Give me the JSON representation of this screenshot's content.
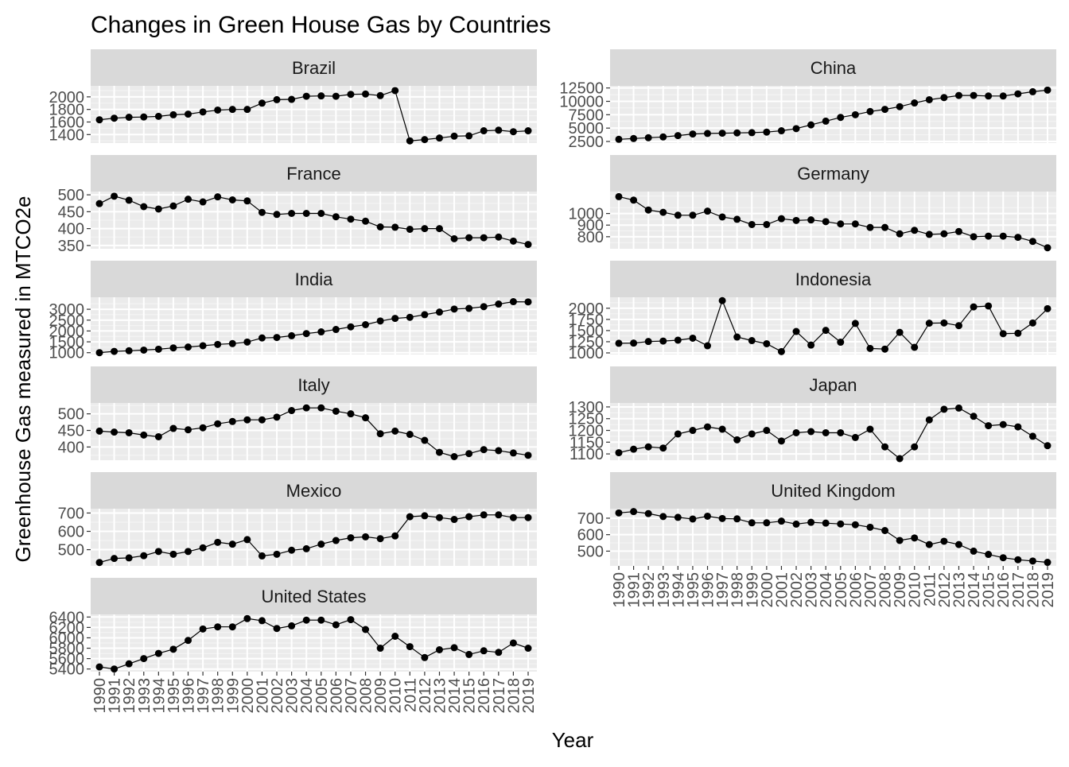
{
  "chart_data": {
    "type": "line",
    "title": "Changes in Green House Gas by Countries",
    "xlabel": "Year",
    "ylabel": "Greenhouse Gas measured in MTCO2e",
    "x": [
      1990,
      1991,
      1992,
      1993,
      1994,
      1995,
      1996,
      1997,
      1998,
      1999,
      2000,
      2001,
      2002,
      2003,
      2004,
      2005,
      2006,
      2007,
      2008,
      2009,
      2010,
      2011,
      2012,
      2013,
      2014,
      2015,
      2016,
      2017,
      2018,
      2019
    ],
    "xlim": [
      1990,
      2019
    ],
    "grid": true,
    "facets": [
      {
        "name": "Brazil",
        "ylim": [
          1290,
          2150
        ],
        "yticks": [
          1400,
          1600,
          1800,
          2000
        ],
        "values": [
          1635,
          1660,
          1675,
          1680,
          1690,
          1715,
          1725,
          1760,
          1790,
          1800,
          1800,
          1900,
          1955,
          1960,
          2010,
          2015,
          2010,
          2040,
          2045,
          2020,
          2100,
          1300,
          1320,
          1345,
          1375,
          1380,
          1460,
          1470,
          1445,
          1460
        ]
      },
      {
        "name": "China",
        "ylim": [
          2500,
          12600
        ],
        "yticks": [
          2500,
          5000,
          7500,
          10000,
          12500
        ],
        "values": [
          2900,
          3050,
          3200,
          3350,
          3600,
          3900,
          4000,
          4050,
          4100,
          4150,
          4250,
          4500,
          4900,
          5600,
          6300,
          7000,
          7500,
          8100,
          8500,
          9000,
          9700,
          10300,
          10700,
          11100,
          11100,
          11000,
          11000,
          11400,
          11800,
          12100
        ]
      },
      {
        "name": "France",
        "ylim": [
          345,
          505
        ],
        "yticks": [
          350,
          400,
          450,
          500
        ],
        "values": [
          474,
          496,
          484,
          465,
          458,
          467,
          487,
          479,
          494,
          485,
          482,
          448,
          442,
          445,
          445,
          445,
          435,
          428,
          422,
          405,
          404,
          398,
          400,
          400,
          370,
          373,
          373,
          375,
          363,
          353
        ]
      },
      {
        "name": "Germany",
        "ylim": [
          710,
          1175
        ],
        "yticks": [
          800,
          900,
          1000
        ],
        "values": [
          1145,
          1115,
          1030,
          1010,
          985,
          985,
          1020,
          970,
          950,
          905,
          905,
          955,
          940,
          945,
          930,
          910,
          910,
          880,
          880,
          825,
          855,
          820,
          825,
          845,
          800,
          805,
          805,
          795,
          760,
          705
        ]
      },
      {
        "name": "India",
        "ylim": [
          990,
          3480
        ],
        "yticks": [
          1000,
          1500,
          2000,
          2500,
          3000
        ],
        "values": [
          1000,
          1060,
          1090,
          1120,
          1160,
          1220,
          1260,
          1320,
          1380,
          1420,
          1490,
          1680,
          1700,
          1780,
          1880,
          1960,
          2070,
          2190,
          2290,
          2460,
          2580,
          2630,
          2750,
          2870,
          3010,
          3040,
          3120,
          3240,
          3350,
          3340
        ]
      },
      {
        "name": "Indonesia",
        "ylim": [
          1000,
          2210
        ],
        "yticks": [
          1000,
          1250,
          1500,
          1750,
          2000
        ],
        "values": [
          1215,
          1220,
          1255,
          1265,
          1285,
          1330,
          1160,
          2170,
          1355,
          1275,
          1205,
          1030,
          1480,
          1175,
          1505,
          1240,
          1660,
          1100,
          1085,
          1460,
          1125,
          1665,
          1670,
          1610,
          2030,
          2050,
          1430,
          1440,
          1670,
          1990
        ]
      },
      {
        "name": "Italy",
        "ylim": [
          365,
          528
        ],
        "yticks": [
          400,
          450,
          500
        ],
        "values": [
          448,
          445,
          443,
          436,
          431,
          456,
          452,
          458,
          470,
          477,
          482,
          482,
          490,
          510,
          518,
          518,
          508,
          500,
          488,
          440,
          448,
          438,
          420,
          384,
          371,
          380,
          392,
          389,
          382,
          375
        ]
      },
      {
        "name": "Japan",
        "ylim": [
          1080,
          1310
        ],
        "yticks": [
          1100,
          1150,
          1200,
          1250,
          1300
        ],
        "values": [
          1105,
          1120,
          1130,
          1125,
          1185,
          1200,
          1215,
          1205,
          1160,
          1185,
          1200,
          1155,
          1190,
          1195,
          1190,
          1190,
          1170,
          1205,
          1130,
          1080,
          1130,
          1245,
          1290,
          1295,
          1260,
          1220,
          1225,
          1215,
          1175,
          1135
        ]
      },
      {
        "name": "Mexico",
        "ylim": [
          420,
          715
        ],
        "yticks": [
          500,
          600,
          700
        ],
        "values": [
          430,
          452,
          455,
          467,
          490,
          475,
          490,
          510,
          540,
          530,
          555,
          466,
          475,
          497,
          505,
          530,
          550,
          565,
          570,
          560,
          575,
          680,
          685,
          675,
          665,
          680,
          690,
          690,
          675,
          675
        ]
      },
      {
        "name": "United Kingdom",
        "ylim": [
          420,
          748
        ],
        "yticks": [
          500,
          600,
          700
        ],
        "values": [
          732,
          740,
          728,
          710,
          705,
          695,
          712,
          698,
          696,
          672,
          672,
          682,
          664,
          675,
          670,
          665,
          660,
          645,
          625,
          565,
          580,
          540,
          560,
          540,
          500,
          480,
          460,
          448,
          440,
          432
        ]
      },
      {
        "name": "United States",
        "ylim": [
          5380,
          6420
        ],
        "yticks": [
          5400,
          5600,
          5800,
          6000,
          6200,
          6400
        ],
        "values": [
          5440,
          5400,
          5500,
          5600,
          5700,
          5780,
          5950,
          6170,
          6210,
          6210,
          6370,
          6330,
          6180,
          6230,
          6340,
          6340,
          6250,
          6350,
          6160,
          5800,
          6030,
          5830,
          5620,
          5770,
          5810,
          5680,
          5750,
          5720,
          5900,
          5800
        ]
      }
    ]
  }
}
